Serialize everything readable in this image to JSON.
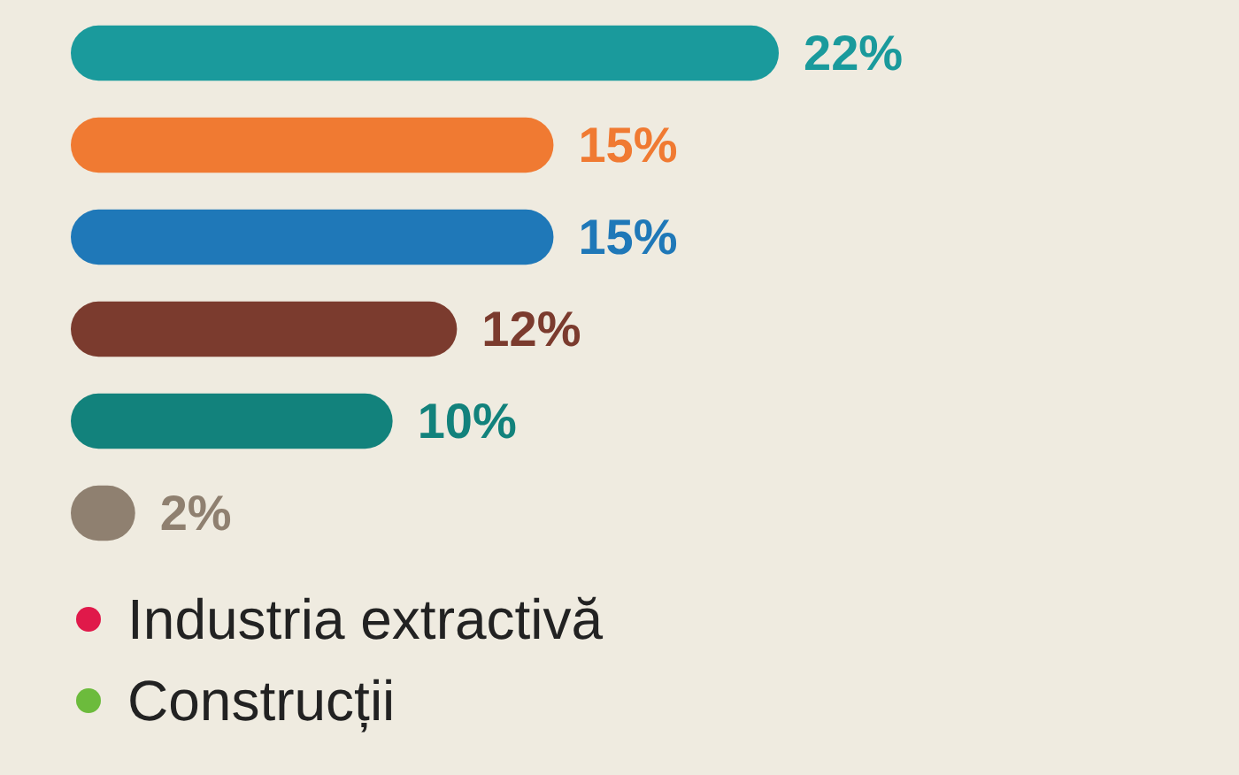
{
  "chart_data": {
    "type": "bar",
    "orientation": "horizontal",
    "categories": [
      null,
      null,
      null,
      null,
      null,
      null
    ],
    "values": [
      22,
      15,
      15,
      12,
      10,
      2
    ],
    "value_labels": [
      "22%",
      "15%",
      "15%",
      "12%",
      "10%",
      "2%"
    ],
    "colors": [
      "#1a9a9c",
      "#f07a32",
      "#1f78b8",
      "#7b3b2e",
      "#12827c",
      "#8f8070"
    ],
    "annotations": [
      "Industria extractivă",
      "Construcții"
    ]
  }
}
